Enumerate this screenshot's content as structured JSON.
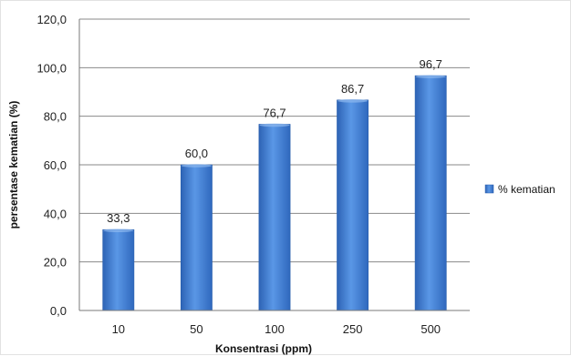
{
  "chart_data": {
    "type": "bar",
    "categories": [
      "10",
      "50",
      "100",
      "250",
      "500"
    ],
    "series": [
      {
        "name": "% kematian",
        "values": [
          33.3,
          60.0,
          76.7,
          86.7,
          96.7
        ],
        "color": "#3f7ed8"
      }
    ],
    "data_labels": [
      "33,3",
      "60,0",
      "76,7",
      "86,7",
      "96,7"
    ],
    "xlabel": "Konsentrasi (ppm)",
    "ylabel": "persentase kematian (%)",
    "ylim": [
      0,
      120
    ],
    "yticks": [
      0,
      20,
      40,
      60,
      80,
      100,
      120
    ],
    "ytick_labels": [
      "0,0",
      "20,0",
      "40,0",
      "60,0",
      "80,0",
      "100,0",
      "120,0"
    ],
    "grid": true,
    "legend_position": "right",
    "bar_color": "#3f7ed8",
    "bar_edge_color": "#2a5fad"
  }
}
